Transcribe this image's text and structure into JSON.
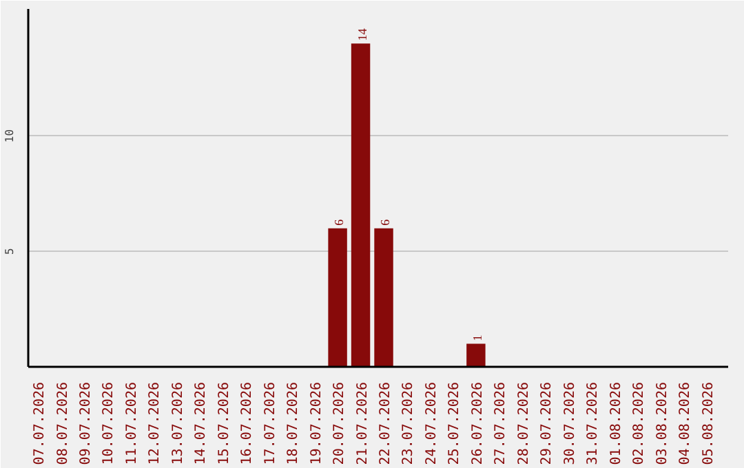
{
  "chart_data": {
    "type": "bar",
    "categories": [
      "07.07.2026",
      "08.07.2026",
      "09.07.2026",
      "10.07.2026",
      "11.07.2026",
      "12.07.2026",
      "13.07.2026",
      "14.07.2026",
      "15.07.2026",
      "16.07.2026",
      "17.07.2026",
      "18.07.2026",
      "19.07.2026",
      "20.07.2026",
      "21.07.2026",
      "22.07.2026",
      "23.07.2026",
      "24.07.2026",
      "25.07.2026",
      "26.07.2026",
      "27.07.2026",
      "28.07.2026",
      "29.07.2026",
      "30.07.2026",
      "31.07.2026",
      "01.08.2026",
      "02.08.2026",
      "03.08.2026",
      "04.08.2026",
      "05.08.2026"
    ],
    "values": [
      0,
      0,
      0,
      0,
      0,
      0,
      0,
      0,
      0,
      0,
      0,
      0,
      0,
      6,
      14,
      6,
      0,
      0,
      0,
      1,
      0,
      0,
      0,
      0,
      0,
      0,
      0,
      0,
      0,
      0
    ],
    "value_labels": [
      null,
      null,
      null,
      null,
      null,
      null,
      null,
      null,
      null,
      null,
      null,
      null,
      null,
      "6",
      "14",
      "6",
      null,
      null,
      null,
      "1",
      null,
      null,
      null,
      null,
      null,
      null,
      null,
      null,
      null,
      null
    ],
    "color": "#870a0a",
    "ylim": [
      0,
      15.5
    ],
    "yticks": [
      5,
      10
    ],
    "grid": "y"
  }
}
